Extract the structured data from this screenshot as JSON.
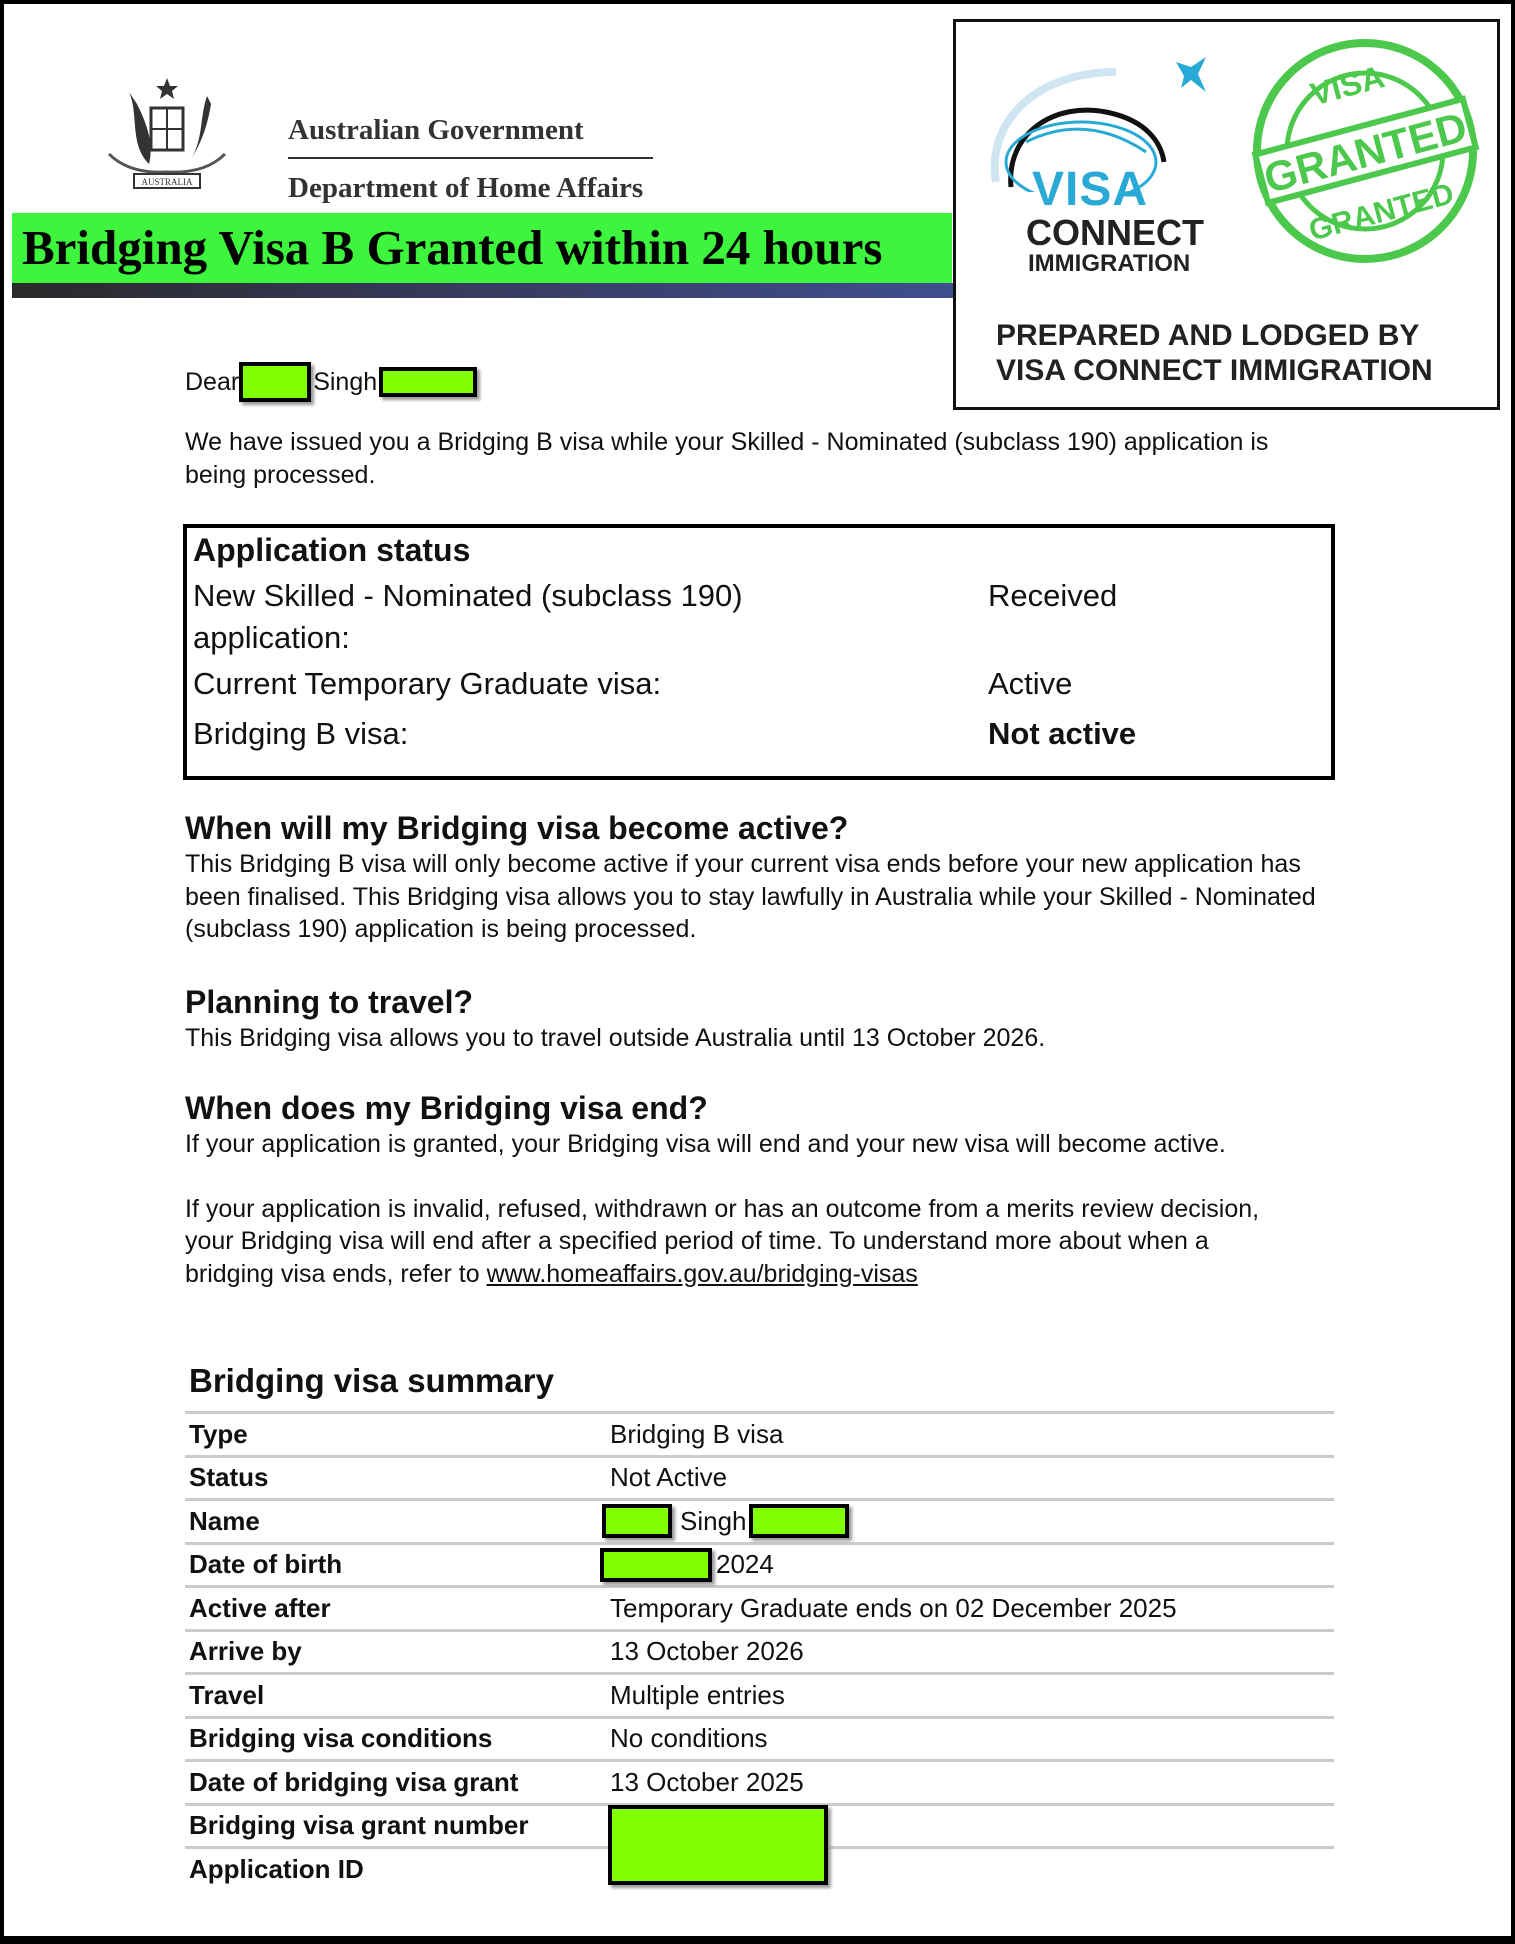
{
  "header": {
    "gov_line1": "Australian Government",
    "gov_line2": "Department of Home Affairs",
    "crest_text": "AUSTRALIA",
    "banner": "Bridging Visa B Granted within 24 hours"
  },
  "agency_box": {
    "logo_word1": "VISA",
    "logo_word2": "CONNECT",
    "logo_word3": "IMMIGRATION",
    "stamp_top": "VISA",
    "stamp_middle": "GRANTED",
    "stamp_bottom": "GRANTED",
    "prepared_line1": "PREPARED AND LODGED BY",
    "prepared_line2": "VISA CONNECT IMMIGRATION"
  },
  "letter": {
    "dear": "Dear",
    "surname": "Singh",
    "intro": "We have issued you a Bridging B visa while your Skilled - Nominated (subclass 190) application is being processed."
  },
  "status_box": {
    "title": "Application status",
    "rows": [
      {
        "label": "New Skilled - Nominated (subclass 190) application:",
        "value": "Received"
      },
      {
        "label": "Current Temporary Graduate visa:",
        "value": "Active"
      },
      {
        "label": "Bridging B visa:",
        "value": "Not active"
      }
    ]
  },
  "sections": [
    {
      "heading": "When will my Bridging visa become active?",
      "body": "This Bridging B visa will only become active if your current visa ends before your new application has been finalised. This Bridging visa allows you to stay lawfully in Australia while your Skilled - Nominated (subclass 190) application is being processed."
    },
    {
      "heading": "Planning to travel?",
      "body": "This Bridging visa allows you to travel outside Australia until 13 October 2026."
    },
    {
      "heading": "When does my Bridging visa end?",
      "body": "If your application is granted, your Bridging visa will end and your new visa will become active.",
      "body2": "If your application is invalid, refused, withdrawn or has an outcome from a merits review decision, your Bridging visa will end after a specified period of time. To understand more about when a bridging visa ends, refer to ",
      "link": "www.homeaffairs.gov.au/bridging-visas"
    }
  ],
  "summary": {
    "title": "Bridging visa summary",
    "rows": [
      {
        "k": "Type",
        "v": "Bridging B visa"
      },
      {
        "k": "Status",
        "v": "Not Active"
      },
      {
        "k": "Name",
        "v": "Singh"
      },
      {
        "k": "Date of birth",
        "v": "2024"
      },
      {
        "k": "Active after",
        "v": "Temporary Graduate ends on 02 December 2025"
      },
      {
        "k": "Arrive by",
        "v": "13 October 2026"
      },
      {
        "k": "Travel",
        "v": "Multiple entries"
      },
      {
        "k": "Bridging visa conditions",
        "v": "No conditions"
      },
      {
        "k": "Date of bridging visa grant",
        "v": "13 October 2025"
      },
      {
        "k": "Bridging visa grant number",
        "v": ""
      },
      {
        "k": "Application ID",
        "v": ""
      }
    ]
  },
  "colors": {
    "banner": "#3cf53c",
    "redaction": "#80ff00",
    "logo_blue": "#29a9d6",
    "stamp_green": "#4cc94c"
  }
}
